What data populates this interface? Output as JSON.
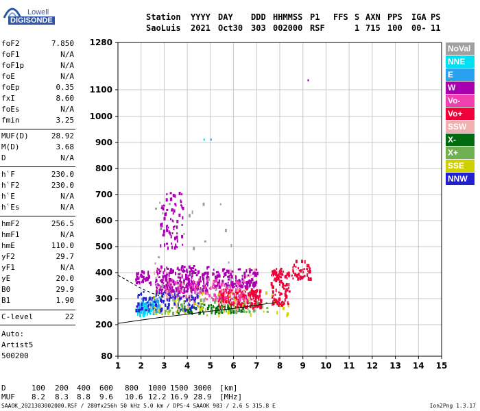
{
  "logo": {
    "line1": "Lowell",
    "line2": "DIGISONDE"
  },
  "header": {
    "row1": [
      "Station",
      "YYYY",
      "DAY",
      "DDD",
      "HHMMSS",
      "P1",
      "FFS",
      "S",
      "AXN",
      "PPS",
      "IGA",
      "PS"
    ],
    "row2": [
      "SaoLuis",
      "2021",
      "Oct30",
      "303",
      "002000",
      "RSF",
      "1",
      "715",
      "100",
      "00-",
      "11"
    ]
  },
  "params_group1": [
    {
      "label": "foF2",
      "value": "7.850"
    },
    {
      "label": "foF1",
      "value": "N/A"
    },
    {
      "label": "foF1p",
      "value": "N/A"
    },
    {
      "label": "foE",
      "value": "N/A"
    },
    {
      "label": "foEp",
      "value": "0.35"
    },
    {
      "label": "fxI",
      "value": "8.60"
    },
    {
      "label": "foEs",
      "value": "N/A"
    },
    {
      "label": "fmin",
      "value": "3.25"
    }
  ],
  "params_group2": [
    {
      "label": "MUF(D)",
      "value": "28.92"
    },
    {
      "label": "M(D)",
      "value": "3.68"
    },
    {
      "label": "D",
      "value": "N/A"
    }
  ],
  "params_group3": [
    {
      "label": "h`F",
      "value": "230.0"
    },
    {
      "label": "h`F2",
      "value": "230.0"
    },
    {
      "label": "h`E",
      "value": "N/A"
    },
    {
      "label": "h`Es",
      "value": "N/A"
    }
  ],
  "params_group4": [
    {
      "label": "hmF2",
      "value": "256.5"
    },
    {
      "label": "hmF1",
      "value": "N/A"
    },
    {
      "label": "hmE",
      "value": "110.0"
    },
    {
      "label": "yF2",
      "value": "29.7"
    },
    {
      "label": "yF1",
      "value": "N/A"
    },
    {
      "label": "yE",
      "value": "20.0"
    },
    {
      "label": "B0",
      "value": "29.9"
    },
    {
      "label": "B1",
      "value": "1.90"
    }
  ],
  "params_group5": [
    {
      "label": "C-level",
      "value": "22"
    }
  ],
  "auto": {
    "line1": "Auto:",
    "line2": "Artist5",
    "line3": "500200"
  },
  "legend": [
    {
      "label": "NoVal",
      "color": "#a0a0a0"
    },
    {
      "label": "NNE",
      "color": "#00e0f0"
    },
    {
      "label": "E",
      "color": "#2aa0f0"
    },
    {
      "label": "W",
      "color": "#a800b0"
    },
    {
      "label": "Vo-",
      "color": "#f040b0"
    },
    {
      "label": "Vo+",
      "color": "#f00038"
    },
    {
      "label": "SSW",
      "color": "#f0b0b0"
    },
    {
      "label": "X-",
      "color": "#006a10"
    },
    {
      "label": "X+",
      "color": "#70b050"
    },
    {
      "label": "SSE",
      "color": "#d0d000"
    },
    {
      "label": "NNW",
      "color": "#2020d0"
    }
  ],
  "muf_table": {
    "d_label": "D",
    "d_values": [
      "100",
      "200",
      "400",
      "600",
      "800",
      "1000",
      "1500",
      "3000"
    ],
    "d_unit": "[km]",
    "muf_label": "MUF",
    "muf_values": [
      "8.2",
      "8.3",
      "8.8",
      "9.6",
      "10.6",
      "12.2",
      "16.9",
      "28.9"
    ],
    "muf_unit": "[MHz]"
  },
  "footer": {
    "left": "SAAOK_2021303002000.RSF / 280fx256h 50 kHz 5.0 km / DPS-4 SAAOK 903 / 2.6 S 315.8 E",
    "right": "Ion2Png 1.3.17"
  },
  "chart_data": {
    "type": "scatter",
    "xlim": [
      1,
      15
    ],
    "ylim": [
      80,
      1280
    ],
    "x_ticks": [
      1,
      2,
      3,
      4,
      5,
      6,
      7,
      8,
      9,
      10,
      11,
      12,
      13,
      14,
      15
    ],
    "y_ticks": [
      80,
      200,
      300,
      400,
      500,
      600,
      700,
      800,
      900,
      1000,
      1100,
      1280
    ],
    "grid": true,
    "y_scale": "nonlinear",
    "clusters": [
      {
        "name": "W",
        "x": [
          2.6,
          4.9
        ],
        "y": [
          330,
          430
        ],
        "n": 260,
        "color": "#a800b0"
      },
      {
        "name": "W",
        "x": [
          5,
          7
        ],
        "y": [
          350,
          420
        ],
        "n": 140,
        "color": "#a800b0"
      },
      {
        "name": "W",
        "x": [
          2.8,
          3.8
        ],
        "y": [
          500,
          720
        ],
        "n": 70,
        "color": "#a800b0"
      },
      {
        "name": "W",
        "x": [
          1.7,
          2.4
        ],
        "y": [
          360,
          410
        ],
        "n": 40,
        "color": "#a800b0"
      },
      {
        "name": "Vo+",
        "x": [
          5.3,
          7.2
        ],
        "y": [
          270,
          340
        ],
        "n": 220,
        "color": "#f00038"
      },
      {
        "name": "Vo+",
        "x": [
          7.6,
          8.4
        ],
        "y": [
          280,
          420
        ],
        "n": 120,
        "color": "#f00038"
      },
      {
        "name": "Vo+",
        "x": [
          8.5,
          9.3
        ],
        "y": [
          380,
          450
        ],
        "n": 40,
        "color": "#f00038"
      },
      {
        "name": "Vo-",
        "x": [
          3,
          6.5
        ],
        "y": [
          300,
          380
        ],
        "n": 120,
        "color": "#f040b0"
      },
      {
        "name": "E",
        "x": [
          1.9,
          2.8
        ],
        "y": [
          250,
          310
        ],
        "n": 80,
        "color": "#2aa0f0"
      },
      {
        "name": "NNE",
        "x": [
          1.8,
          2.6
        ],
        "y": [
          240,
          290
        ],
        "n": 40,
        "color": "#00e0f0"
      },
      {
        "name": "NNW",
        "x": [
          1.7,
          4.5
        ],
        "y": [
          260,
          330
        ],
        "n": 100,
        "color": "#2020d0"
      },
      {
        "name": "X-",
        "x": [
          3.5,
          6.5
        ],
        "y": [
          250,
          280
        ],
        "n": 80,
        "color": "#006a10"
      },
      {
        "name": "X+",
        "x": [
          3,
          7.5
        ],
        "y": [
          250,
          300
        ],
        "n": 60,
        "color": "#70b050"
      },
      {
        "name": "SSE",
        "x": [
          2.5,
          8.4
        ],
        "y": [
          240,
          330
        ],
        "n": 50,
        "color": "#d0d000"
      },
      {
        "name": "SSW",
        "x": [
          2,
          7
        ],
        "y": [
          260,
          420
        ],
        "n": 50,
        "color": "#f0b0b0"
      },
      {
        "name": "NoVal",
        "x": [
          2.5,
          6
        ],
        "y": [
          300,
          700
        ],
        "n": 30,
        "color": "#a0a0a0"
      }
    ],
    "isolated_points": [
      {
        "x": 9.2,
        "y": 1140,
        "color": "#a800b0"
      },
      {
        "x": 5.0,
        "y": 915,
        "color": "#2aa0f0"
      },
      {
        "x": 4.7,
        "y": 915,
        "color": "#00e0f0"
      }
    ],
    "trace_lower": {
      "x": [
        1,
        2,
        3,
        4,
        5,
        6,
        7,
        7.8
      ],
      "y": [
        205,
        218,
        230,
        240,
        252,
        262,
        275,
        285
      ]
    },
    "trace_upper": {
      "x": [
        1,
        1.5,
        2,
        2.5,
        3
      ],
      "y": [
        390,
        365,
        340,
        320,
        305
      ]
    }
  }
}
